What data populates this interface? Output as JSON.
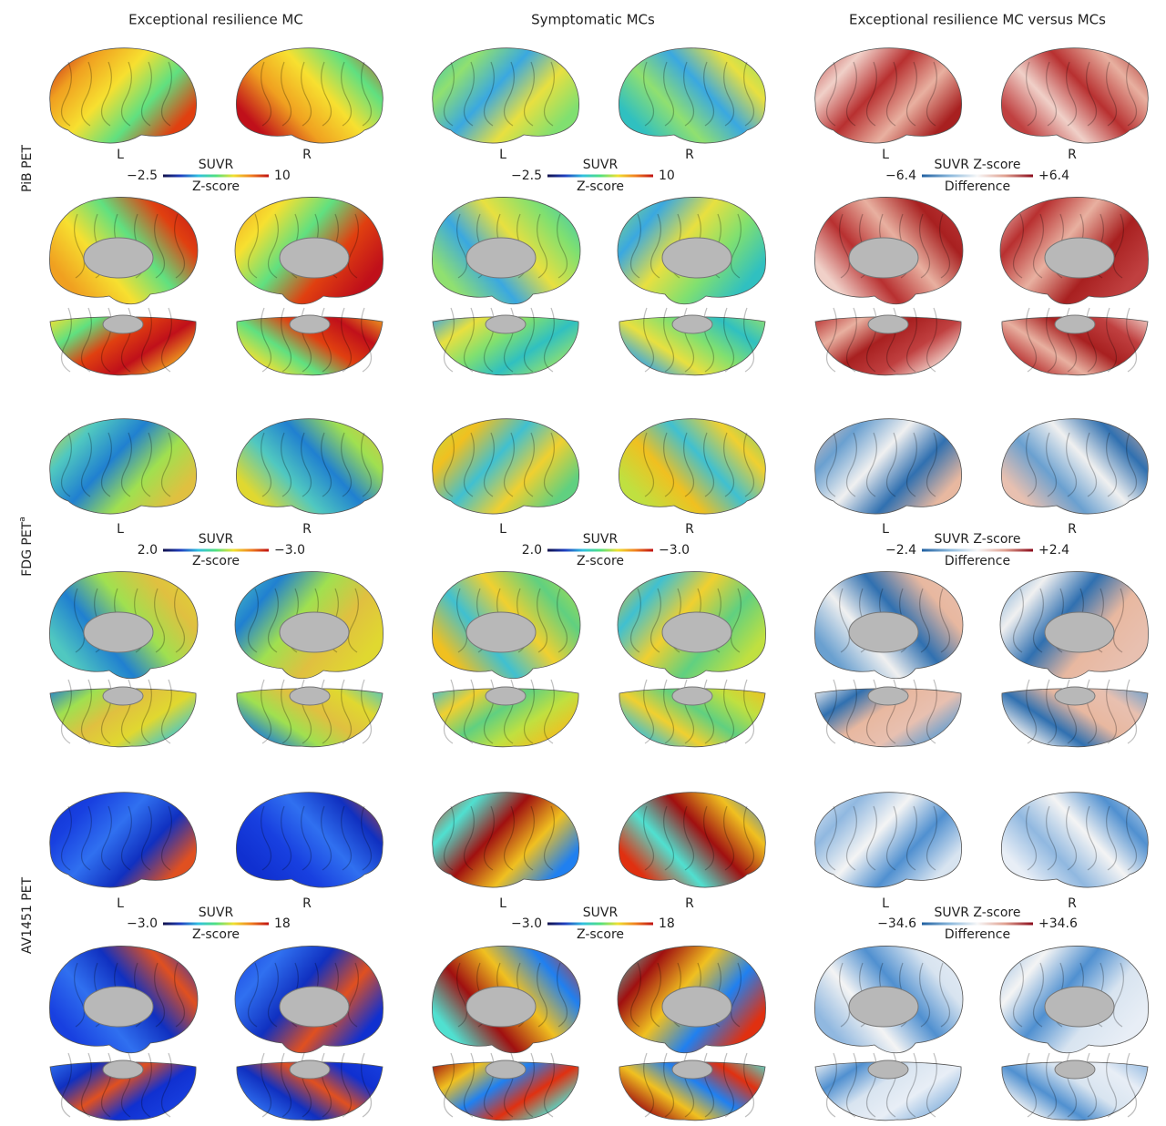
{
  "columns": [
    "Exceptional resilience MC",
    "Symptomatic MCs",
    "Exceptional resilience MC versus MCs"
  ],
  "rows": [
    {
      "label": "PiB PET",
      "hemispheres": [
        "L",
        "R"
      ],
      "colorbars": [
        {
          "label_top": "SUVR",
          "label_bottom": "Z-score",
          "min": "−2.5",
          "max": "10"
        },
        {
          "label_top": "SUVR",
          "label_bottom": "Z-score",
          "min": "−2.5",
          "max": "10"
        },
        {
          "label_top": "SUVR Z-score",
          "label_bottom": "Difference",
          "min": "−6.4",
          "max": "+6.4"
        }
      ]
    },
    {
      "label": "FDG PET",
      "label_superscript": "a",
      "hemispheres": [
        "L",
        "R"
      ],
      "colorbars": [
        {
          "label_top": "SUVR",
          "label_bottom": "Z-score",
          "min": "2.0",
          "max": "−3.0"
        },
        {
          "label_top": "SUVR",
          "label_bottom": "Z-score",
          "min": "2.0",
          "max": "−3.0"
        },
        {
          "label_top": "SUVR Z-score",
          "label_bottom": "Difference",
          "min": "−2.4",
          "max": "+2.4"
        }
      ]
    },
    {
      "label": "AV1451 PET",
      "hemispheres": [
        "L",
        "R"
      ],
      "colorbars": [
        {
          "label_top": "SUVR",
          "label_bottom": "Z-score",
          "min": "−3.0",
          "max": "18"
        },
        {
          "label_top": "SUVR",
          "label_bottom": "Z-score",
          "min": "−3.0",
          "max": "18"
        },
        {
          "label_top": "SUVR Z-score",
          "label_bottom": "Difference",
          "min": "−34.6",
          "max": "+34.6"
        }
      ]
    }
  ]
}
